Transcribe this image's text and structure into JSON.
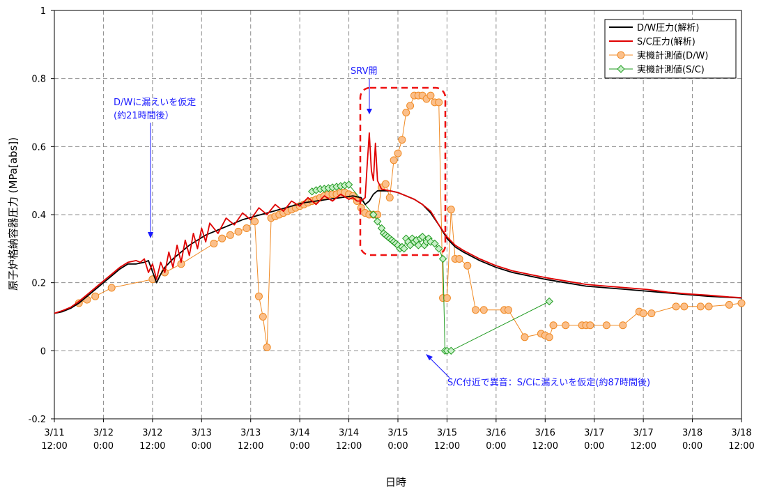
{
  "chart_data": {
    "type": "line",
    "xlabel": "日時",
    "ylabel": "原子炉格納容器圧力 (MPa[abs])",
    "xlim_hours": [
      0,
      168
    ],
    "ylim": [
      -0.2,
      1.0
    ],
    "yticks": [
      -0.2,
      0,
      0.2,
      0.4,
      0.6,
      0.8,
      1
    ],
    "yticks_labels": [
      "-0.2",
      "0",
      "0.2",
      "0.4",
      "0.6",
      "0.8",
      "1"
    ],
    "xticks": [
      {
        "hour": 0,
        "line1": "3/11",
        "line2": "12:00"
      },
      {
        "hour": 12,
        "line1": "3/12",
        "line2": "0:00"
      },
      {
        "hour": 24,
        "line1": "3/12",
        "line2": "12:00"
      },
      {
        "hour": 36,
        "line1": "3/13",
        "line2": "0:00"
      },
      {
        "hour": 48,
        "line1": "3/13",
        "line2": "12:00"
      },
      {
        "hour": 60,
        "line1": "3/14",
        "line2": "0:00"
      },
      {
        "hour": 72,
        "line1": "3/14",
        "line2": "12:00"
      },
      {
        "hour": 84,
        "line1": "3/15",
        "line2": "0:00"
      },
      {
        "hour": 96,
        "line1": "3/15",
        "line2": "12:00"
      },
      {
        "hour": 108,
        "line1": "3/16",
        "line2": "0:00"
      },
      {
        "hour": 120,
        "line1": "3/16",
        "line2": "12:00"
      },
      {
        "hour": 132,
        "line1": "3/17",
        "line2": "0:00"
      },
      {
        "hour": 144,
        "line1": "3/17",
        "line2": "12:00"
      },
      {
        "hour": 156,
        "line1": "3/18",
        "line2": "0:00"
      },
      {
        "hour": 168,
        "line1": "3/18",
        "line2": "12:00"
      }
    ],
    "grid": true,
    "legend_position": "top-right",
    "series": [
      {
        "name": "D/W圧力(解析)",
        "color": "#000000",
        "kind": "line",
        "x": [
          0,
          2,
          4,
          6,
          8,
          10,
          12,
          14,
          16,
          18,
          20,
          22,
          23,
          25,
          26,
          27,
          29,
          31,
          33,
          35,
          37,
          40,
          43,
          46,
          49,
          52,
          55,
          58,
          61,
          64,
          67,
          70,
          73,
          75,
          76,
          77,
          78,
          79,
          80,
          82,
          84,
          86,
          88,
          90,
          92,
          94,
          96,
          98,
          100,
          104,
          108,
          112,
          116,
          120,
          125,
          130,
          135,
          140,
          145,
          150,
          155,
          160,
          165,
          168
        ],
        "y": [
          0.11,
          0.115,
          0.125,
          0.14,
          0.16,
          0.18,
          0.2,
          0.22,
          0.24,
          0.255,
          0.255,
          0.26,
          0.265,
          0.2,
          0.225,
          0.245,
          0.27,
          0.29,
          0.31,
          0.325,
          0.34,
          0.355,
          0.37,
          0.385,
          0.395,
          0.405,
          0.415,
          0.425,
          0.435,
          0.44,
          0.445,
          0.45,
          0.455,
          0.45,
          0.43,
          0.44,
          0.46,
          0.47,
          0.47,
          0.47,
          0.465,
          0.455,
          0.445,
          0.43,
          0.405,
          0.37,
          0.33,
          0.305,
          0.29,
          0.265,
          0.245,
          0.23,
          0.22,
          0.21,
          0.2,
          0.19,
          0.185,
          0.18,
          0.175,
          0.17,
          0.165,
          0.16,
          0.157,
          0.155
        ]
      },
      {
        "name": "S/C圧力(解析)",
        "color": "#e00000",
        "kind": "line",
        "x": [
          0,
          2,
          4,
          6,
          8,
          10,
          12,
          14,
          16,
          18,
          20,
          21,
          22,
          23,
          24,
          25,
          26,
          27,
          28,
          29,
          30,
          31,
          32,
          33,
          34,
          35,
          36,
          37,
          38,
          40,
          42,
          44,
          46,
          48,
          50,
          52,
          54,
          56,
          58,
          60,
          62,
          64,
          66,
          68,
          70,
          72,
          73,
          74,
          75,
          76,
          76.5,
          77,
          77.5,
          78,
          78.5,
          79,
          80,
          82,
          84,
          86,
          88,
          90,
          92,
          94,
          96,
          98,
          100,
          104,
          108,
          112,
          116,
          120,
          125,
          130,
          135,
          140,
          145,
          150,
          155,
          160,
          165,
          168
        ],
        "y": [
          0.11,
          0.118,
          0.128,
          0.145,
          0.165,
          0.185,
          0.205,
          0.225,
          0.245,
          0.26,
          0.265,
          0.26,
          0.27,
          0.23,
          0.255,
          0.21,
          0.26,
          0.23,
          0.29,
          0.245,
          0.31,
          0.26,
          0.325,
          0.28,
          0.345,
          0.3,
          0.36,
          0.32,
          0.375,
          0.345,
          0.39,
          0.37,
          0.405,
          0.385,
          0.42,
          0.4,
          0.43,
          0.41,
          0.44,
          0.425,
          0.45,
          0.43,
          0.455,
          0.44,
          0.46,
          0.445,
          0.45,
          0.44,
          0.44,
          0.45,
          0.55,
          0.64,
          0.53,
          0.5,
          0.61,
          0.5,
          0.475,
          0.47,
          0.465,
          0.455,
          0.445,
          0.43,
          0.41,
          0.37,
          0.335,
          0.31,
          0.295,
          0.27,
          0.25,
          0.235,
          0.225,
          0.215,
          0.205,
          0.195,
          0.19,
          0.185,
          0.18,
          0.172,
          0.167,
          0.163,
          0.158,
          0.156
        ]
      },
      {
        "name": "実機計測値(D/W)",
        "color": "#f08a24",
        "fill": "#fbbf8a",
        "kind": "circle",
        "x": [
          6,
          8,
          10,
          14,
          24,
          27,
          31,
          39,
          41,
          43,
          45,
          47,
          49,
          50,
          51,
          52,
          53,
          54,
          55,
          56,
          57,
          58,
          59,
          60,
          61,
          62,
          63,
          64,
          65,
          66,
          67,
          68,
          69,
          70,
          71,
          72,
          73,
          74,
          75,
          76,
          77,
          78,
          79,
          80,
          81,
          82,
          83,
          84,
          85,
          86,
          87,
          88,
          89,
          90,
          91,
          92,
          93,
          94,
          95,
          96,
          97,
          98,
          99,
          101,
          103,
          105,
          110,
          111,
          115,
          119,
          120,
          121,
          122,
          125,
          129,
          130,
          131,
          135,
          139,
          143,
          144,
          146,
          152,
          154,
          158,
          160,
          165,
          168
        ],
        "y": [
          0.14,
          0.15,
          0.16,
          0.185,
          0.21,
          0.23,
          0.255,
          0.315,
          0.33,
          0.34,
          0.35,
          0.36,
          0.38,
          0.16,
          0.1,
          0.01,
          0.39,
          0.395,
          0.4,
          0.405,
          0.41,
          0.415,
          0.42,
          0.425,
          0.43,
          0.435,
          0.44,
          0.445,
          0.45,
          0.455,
          0.46,
          0.46,
          0.46,
          0.465,
          0.465,
          0.46,
          0.455,
          0.44,
          0.42,
          0.405,
          0.4,
          0.4,
          0.4,
          0.48,
          0.49,
          0.45,
          0.56,
          0.58,
          0.62,
          0.7,
          0.72,
          0.75,
          0.75,
          0.75,
          0.74,
          0.75,
          0.73,
          0.73,
          0.155,
          0.155,
          0.415,
          0.27,
          0.27,
          0.25,
          0.12,
          0.12,
          0.12,
          0.12,
          0.04,
          0.05,
          0.045,
          0.04,
          0.075,
          0.075,
          0.075,
          0.075,
          0.075,
          0.075,
          0.075,
          0.115,
          0.11,
          0.11,
          0.13,
          0.13,
          0.13,
          0.13,
          0.135,
          0.14
        ]
      },
      {
        "name": "実機計測値(S/C)",
        "color": "#1e9a1e",
        "fill": "#c8f0c8",
        "kind": "diamond",
        "x": [
          63,
          64,
          65,
          66,
          67,
          68,
          69,
          70,
          71,
          72,
          78,
          79,
          80,
          80.5,
          81,
          81.5,
          82,
          82.5,
          83,
          83.5,
          84,
          84.5,
          85,
          85.5,
          86,
          86.5,
          87,
          87.5,
          88,
          88.5,
          89,
          89.5,
          90,
          90.5,
          91,
          91.5,
          92,
          93,
          94,
          95,
          95.5,
          96,
          97,
          121
        ],
        "y": [
          0.468,
          0.472,
          0.475,
          0.476,
          0.478,
          0.48,
          0.482,
          0.484,
          0.486,
          0.488,
          0.4,
          0.38,
          0.36,
          0.345,
          0.34,
          0.335,
          0.33,
          0.325,
          0.32,
          0.315,
          0.31,
          0.3,
          0.305,
          0.3,
          0.33,
          0.32,
          0.31,
          0.33,
          0.32,
          0.325,
          0.31,
          0.33,
          0.335,
          0.31,
          0.32,
          0.33,
          0.32,
          0.315,
          0.3,
          0.27,
          0.0,
          0.0,
          0.0,
          0.145
        ]
      }
    ],
    "annotations": {
      "box_label": "SRV開",
      "dw_leak_line1": "D/Wに漏えいを仮定",
      "dw_leak_line2": "(約21時間後）",
      "sc_leak": "S/C付近で異音：S/Cに漏えいを仮定(約87時間後)"
    }
  }
}
